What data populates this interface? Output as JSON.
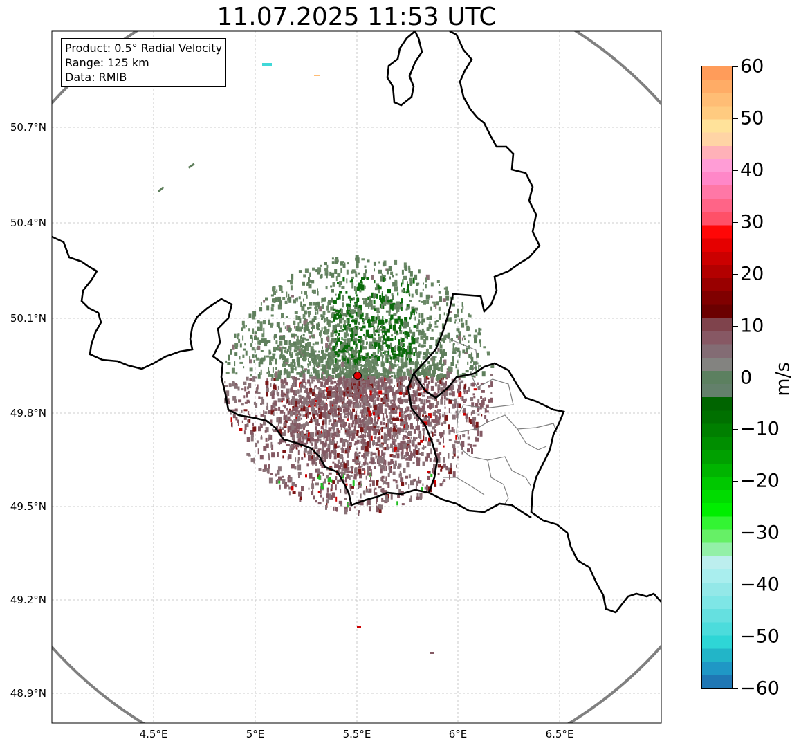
{
  "title": "11.07.2025 11:53 UTC",
  "info_box": {
    "line1": "Product: 0.5° Radial Velocity",
    "line2": "Range: 125 km",
    "line3": "Data: RMIB"
  },
  "map": {
    "lon_range": [
      4.0,
      7.0
    ],
    "lat_range": [
      48.8,
      51.0
    ],
    "lat_ticks": [
      "50.7°N",
      "50.4°N",
      "50.1°N",
      "49.8°N",
      "49.5°N",
      "49.2°N",
      "48.9°N"
    ],
    "lon_ticks": [
      "4.5°E",
      "5°E",
      "5.5°E",
      "6°E",
      "6.5°E"
    ],
    "radar_site": {
      "lon": 5.505,
      "lat": 49.914
    },
    "range_ring_color": "#808080",
    "border_color": "#000000",
    "admin_border_color": "#808080",
    "grid": true
  },
  "colorbar": {
    "unit": "m/s",
    "min": -60,
    "max": 60,
    "tick_labels": [
      "60",
      "50",
      "40",
      "30",
      "20",
      "10",
      "0",
      "−10",
      "−20",
      "−30",
      "−40",
      "−50",
      "−60"
    ],
    "colors_top_to_bottom": [
      "#ff9c5a",
      "#ffac66",
      "#ffbd75",
      "#ffcb80",
      "#ffe29a",
      "#ffd4a5",
      "#ffb1b8",
      "#ff9dd6",
      "#ff87c8",
      "#ff77a6",
      "#ff6487",
      "#ff5068",
      "#ff0707",
      "#e50000",
      "#cc0000",
      "#b30000",
      "#990000",
      "#800000",
      "#6b0000",
      "#7f434c",
      "#875864",
      "#836c74",
      "#838380",
      "#5c8060",
      "#63806b",
      "#006400",
      "#007000",
      "#007f00",
      "#008e00",
      "#00a000",
      "#00b400",
      "#00c800",
      "#00dc00",
      "#00ee00",
      "#33f433",
      "#66f066",
      "#93f0a8",
      "#bceeee",
      "#a9eeee",
      "#93e8e8",
      "#7ee6e6",
      "#65e0e0",
      "#4cdcdc",
      "#2ed6d6",
      "#22b5c8",
      "#1f97c5",
      "#1f77b4"
    ]
  }
}
